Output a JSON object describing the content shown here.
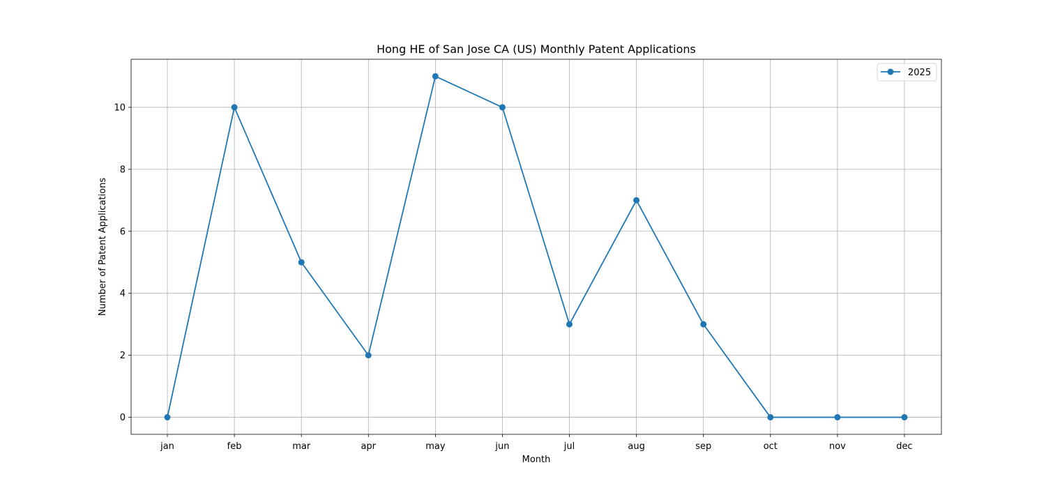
{
  "chart_data": {
    "type": "line",
    "title": "Hong HE of San Jose CA (US) Monthly Patent Applications",
    "xlabel": "Month",
    "ylabel": "Number of Patent Applications",
    "categories": [
      "jan",
      "feb",
      "mar",
      "apr",
      "may",
      "jun",
      "jul",
      "aug",
      "sep",
      "oct",
      "nov",
      "dec"
    ],
    "series": [
      {
        "name": "2025",
        "color": "#1f77b4",
        "marker": "circle",
        "values": [
          0,
          10,
          5,
          2,
          11,
          10,
          3,
          7,
          3,
          0,
          0,
          0
        ]
      }
    ],
    "yticks": [
      0,
      2,
      4,
      6,
      8,
      10
    ],
    "ylim": [
      -0.55,
      11.55
    ],
    "grid": true,
    "legend_position": "top-right"
  }
}
